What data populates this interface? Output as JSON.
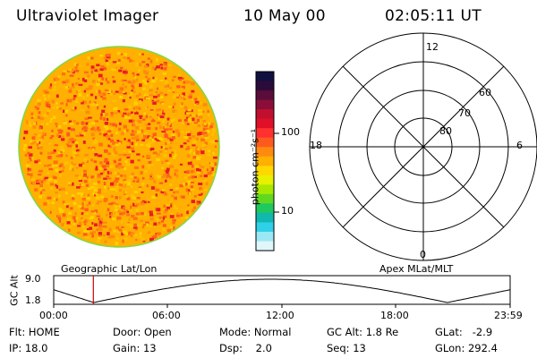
{
  "header": {
    "title": "Ultraviolet Imager",
    "date": "10 May 00",
    "time": "02:05:11 UT"
  },
  "colorbar": {
    "unit_label": "photon cm⁻²s⁻¹",
    "tick_labels": [
      "100",
      "10"
    ],
    "colors": [
      "#101040",
      "#2a0b3a",
      "#5a0d3a",
      "#8a0e38",
      "#c01030",
      "#e01028",
      "#ff3030",
      "#ff5a1e",
      "#ff8a10",
      "#ffb000",
      "#ffd800",
      "#e8f000",
      "#a8e800",
      "#60d820",
      "#20c860",
      "#10b8b0",
      "#30d0e8",
      "#9ae8f4",
      "#e0f6fa"
    ]
  },
  "polar_plot": {
    "latitude_labels": [
      "60",
      "70",
      "80"
    ],
    "mlt_labels": [
      "12",
      "18",
      "6",
      "0"
    ]
  },
  "altitude_panel": {
    "left_caption": "Geographic Lat/Lon",
    "right_caption": "Apex MLat/MLT",
    "y_axis_label": "GC Alt",
    "y_ticks": [
      "9.0",
      "1.8"
    ],
    "x_ticks": [
      "00:00",
      "06:00",
      "12:00",
      "18:00",
      "23:59"
    ],
    "current_time_hours": 2.087,
    "altitude_range_re": [
      1.8,
      9.0
    ],
    "marker_color": "#cc0000"
  },
  "status": {
    "flt": "Flt: HOME",
    "ip": "IP: 18.0",
    "door": "Door: Open",
    "gain": "Gain: 13",
    "mode": "Mode: Normal",
    "dsp": "Dsp:    2.0",
    "gc_alt": "GC Alt: 1.8 Re",
    "seq": "Seq: 13",
    "glat": "GLat:   -2.9",
    "glon": "GLon: 292.4"
  }
}
